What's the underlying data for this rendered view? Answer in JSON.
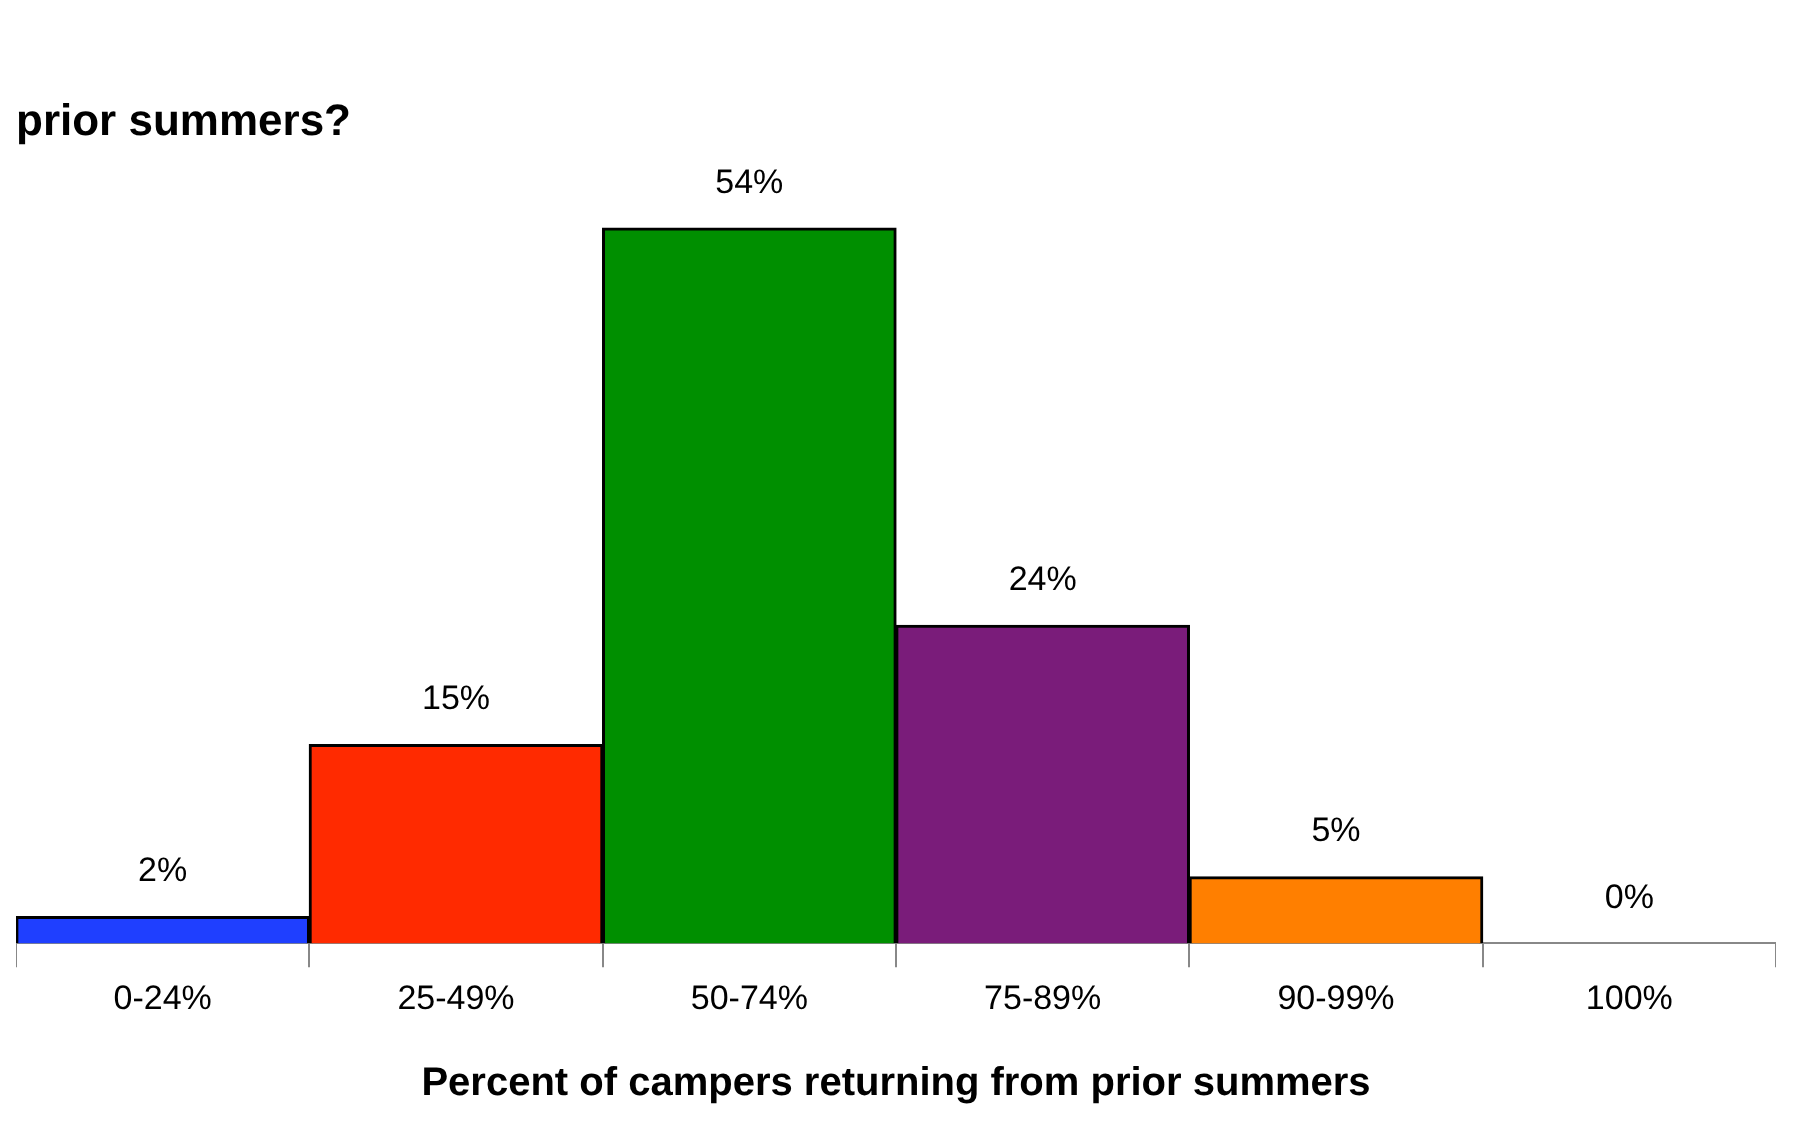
{
  "chart_data": {
    "type": "bar",
    "title": "prior summers?",
    "xlabel": "Percent of campers returning from prior summers",
    "categories": [
      "0-24%",
      "25-49%",
      "50-74%",
      "75-89%",
      "90-99%",
      "100%"
    ],
    "values": [
      2,
      15,
      54,
      24,
      5,
      0
    ],
    "colors": [
      "#1f3fff",
      "#ff2a00",
      "#008f00",
      "#7a1c7a",
      "#ff7f00",
      "#a0a0a0"
    ],
    "value_labels": [
      "2%",
      "15%",
      "54%",
      "24%",
      "5%",
      "0%"
    ],
    "grid": false,
    "legend": false
  }
}
